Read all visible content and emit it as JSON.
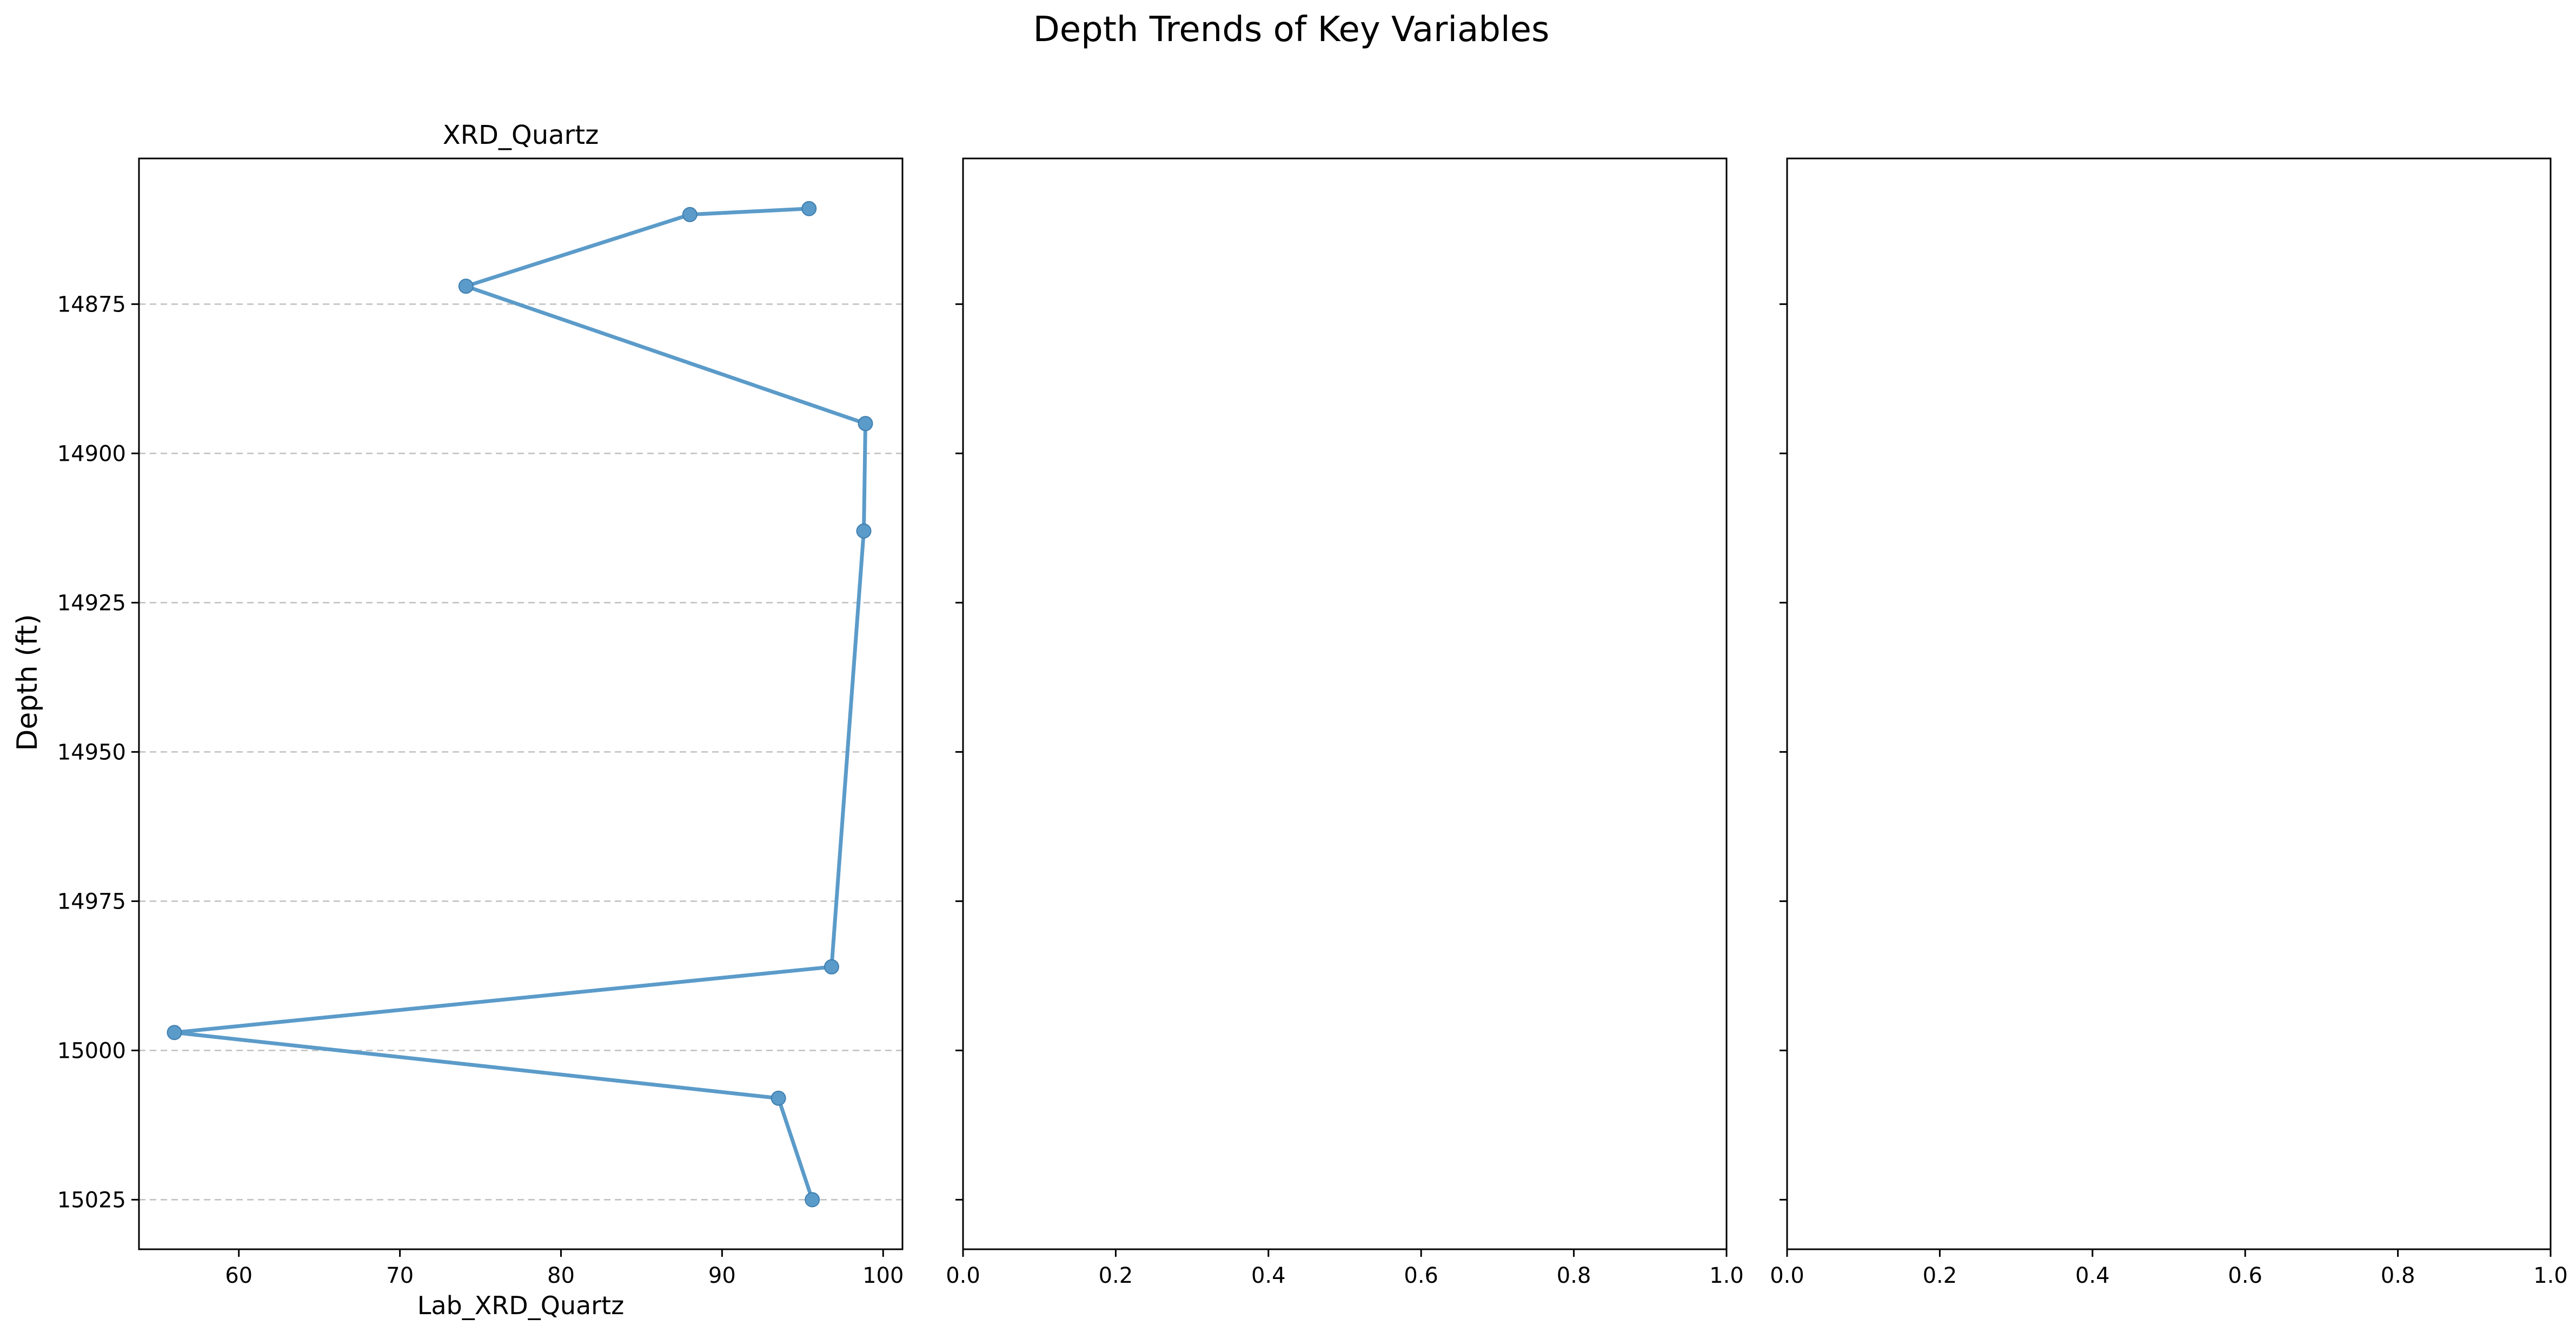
{
  "figure": {
    "suptitle": "Depth Trends of Key Variables",
    "shared_ylabel": "Depth (ft)"
  },
  "colors": {
    "series": "#5b9bc9",
    "grid": "#bfbfbf",
    "axis": "#000000"
  },
  "chart_data": [
    {
      "type": "line",
      "title": "XRD_Quartz",
      "xlabel": "Lab_XRD_Quartz",
      "ylabel": "Depth (ft)",
      "xlim": [
        53.8,
        101.2
      ],
      "ylim": [
        15033.3,
        14850.6
      ],
      "y_inverted": true,
      "xticks": [
        60,
        70,
        80,
        90,
        100
      ],
      "yticks": [
        14875,
        14900,
        14925,
        14950,
        14975,
        15000,
        15025
      ],
      "grid": "y-dashed",
      "markers": true,
      "series": [
        {
          "x": [
            95.4,
            88.0,
            74.1,
            98.9,
            98.8,
            96.8,
            56.0,
            93.5,
            95.6
          ],
          "y": [
            14859,
            14860,
            14872,
            14895,
            14913,
            14986,
            14997,
            15008,
            15025
          ]
        }
      ]
    },
    {
      "type": "line",
      "title": "",
      "xlabel": "",
      "xlim": [
        0,
        1
      ],
      "xticks": [
        "0.0",
        "0.2",
        "0.4",
        "0.6",
        "0.8",
        "1.0"
      ],
      "series": []
    },
    {
      "type": "line",
      "title": "",
      "xlabel": "",
      "xlim": [
        0,
        1
      ],
      "xticks": [
        "0.0",
        "0.2",
        "0.4",
        "0.6",
        "0.8",
        "1.0"
      ],
      "series": []
    }
  ]
}
